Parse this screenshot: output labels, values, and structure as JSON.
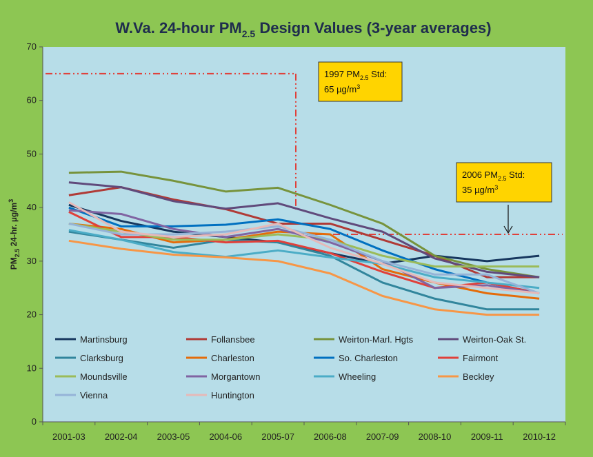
{
  "chart_data": {
    "type": "line",
    "title": [
      "W.Va. 24-hour PM",
      "2.5",
      " Design Values (3-year averages)"
    ],
    "y_label": [
      "PM",
      "2.5",
      " 24-hr. µg/m",
      "3"
    ],
    "categories": [
      "2001-03",
      "2002-04",
      "2003-05",
      "2004-06",
      "2005-07",
      "2006-08",
      "2007-09",
      "2008-10",
      "2009-11",
      "2010-12"
    ],
    "ylim": [
      0,
      70
    ],
    "yticks": [
      0,
      10,
      20,
      30,
      40,
      50,
      60,
      70
    ],
    "series": [
      {
        "name": "Martinsburg",
        "color": "#17375e",
        "values": [
          40.5,
          37.5,
          35.5,
          34.5,
          33.5,
          31.5,
          29.5,
          31,
          30,
          31
        ]
      },
      {
        "name": "Follansbee",
        "color": "#b03a36",
        "values": [
          42.3,
          43.8,
          41.5,
          39.7,
          37,
          37,
          34,
          31,
          27,
          27
        ]
      },
      {
        "name": "Weirton-Marl. Hgts",
        "color": "#77933c",
        "values": [
          46.5,
          46.7,
          45,
          43,
          43.7,
          40.5,
          37,
          31,
          28.5,
          27
        ]
      },
      {
        "name": "Weirton-Oak St.",
        "color": "#604a7b",
        "values": [
          44.7,
          43.8,
          41.2,
          39.8,
          40.8,
          38,
          35.5,
          30.5,
          28,
          27
        ]
      },
      {
        "name": "Clarksburg",
        "color": "#31859c",
        "values": [
          35.5,
          34,
          32.5,
          34,
          33.5,
          31,
          26,
          23,
          21,
          21
        ]
      },
      {
        "name": "Charleston",
        "color": "#e46c0a",
        "values": [
          37,
          36,
          33.5,
          34,
          35.5,
          35,
          28.5,
          26,
          24,
          23
        ]
      },
      {
        "name": "So. Charleston",
        "color": "#0070c0",
        "values": [
          40,
          36.5,
          36.5,
          36.8,
          37.8,
          36,
          32,
          28.5,
          26,
          24
        ]
      },
      {
        "name": "Fairmont",
        "color": "#e0403a",
        "values": [
          39.2,
          34.5,
          34.5,
          33.5,
          33.8,
          31.5,
          28,
          25,
          26,
          24
        ]
      },
      {
        "name": "Moundsville",
        "color": "#9bbb59",
        "values": [
          37,
          35.5,
          34,
          34,
          35,
          34,
          31,
          29,
          29,
          29
        ]
      },
      {
        "name": "Morgantown",
        "color": "#8064a2",
        "values": [
          39.5,
          38.8,
          36,
          34.5,
          36,
          33.5,
          30,
          25,
          25.5,
          24
        ]
      },
      {
        "name": "Wheeling",
        "color": "#4bacc6",
        "values": [
          35.8,
          34,
          31.7,
          30.8,
          32,
          30.7,
          29.5,
          27,
          26,
          25
        ]
      },
      {
        "name": "Beckley",
        "color": "#f79646",
        "values": [
          33.8,
          32.3,
          31.2,
          30.7,
          30,
          27.7,
          23.5,
          21,
          20,
          20
        ]
      },
      {
        "name": "Vienna",
        "color": "#95b3d7",
        "values": [
          37,
          35,
          35,
          35.5,
          36.5,
          34,
          30,
          27.5,
          27.5,
          24
        ]
      },
      {
        "name": "Huntington",
        "color": "#e6b9b8",
        "values": [
          41,
          35.5,
          34.5,
          35,
          37,
          32.5,
          29.5,
          26,
          25,
          24
        ]
      }
    ],
    "reference_lines": [
      {
        "value": 65,
        "color": "#e0403a",
        "text": [
          [
            "1997 PM",
            "2.5",
            " Std:"
          ],
          [
            "65 µg/m",
            "3"
          ]
        ]
      },
      {
        "value": 35,
        "color": "#e0403a",
        "text": [
          [
            "2006 PM",
            "2.5",
            " Std:"
          ],
          [
            "35 µg/m",
            "3"
          ]
        ]
      }
    ]
  }
}
